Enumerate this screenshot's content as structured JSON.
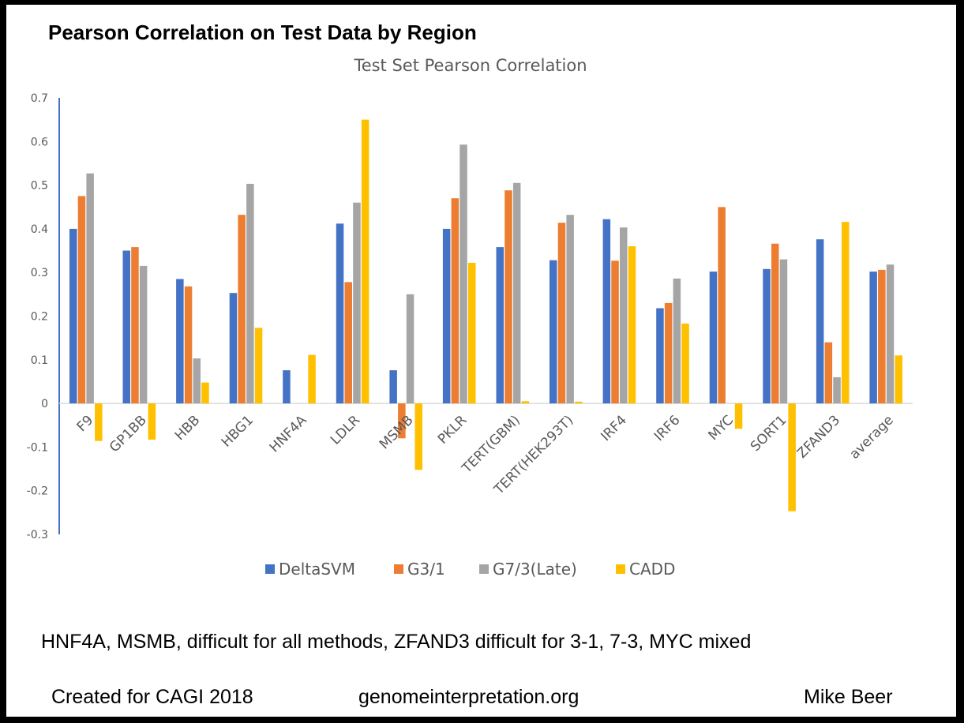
{
  "slide": {
    "heading": "Pearson Correlation on Test Data by Region",
    "note": "HNF4A, MSMB, difficult for all methods, ZFAND3 difficult for 3-1, 7-3, MYC mixed",
    "footer_left": "Created for CAGI 2018",
    "footer_center": "genomeinterpretation.org",
    "footer_right": "Mike Beer"
  },
  "chart_data": {
    "type": "bar",
    "title": "Test Set Pearson Correlation",
    "xlabel": "",
    "ylabel": "",
    "ylim": [
      -0.3,
      0.7
    ],
    "yticks": [
      "0.7",
      "0.6",
      "0.5",
      "0.4",
      "0.3",
      "0.2",
      "0.1",
      "0",
      "-0.1",
      "-0.2",
      "-0.3"
    ],
    "grid": false,
    "legend_position": "bottom",
    "categories": [
      "F9",
      "GP1BB",
      "HBB",
      "HBG1",
      "HNF4A",
      "LDLR",
      "MSMB",
      "PKLR",
      "TERT(GBM)",
      "TERT(HEK293T)",
      "IRF4",
      "IRF6",
      "MYC",
      "SORT1",
      "ZFAND3",
      "average"
    ],
    "series": [
      {
        "name": "DeltaSVM",
        "color": "#4472C4",
        "values": [
          0.4,
          0.35,
          0.285,
          0.253,
          0.076,
          0.412,
          0.076,
          0.4,
          0.358,
          0.328,
          0.422,
          0.218,
          0.302,
          0.308,
          0.376,
          0.302
        ]
      },
      {
        "name": "G3/1",
        "color": "#ED7D31",
        "values": [
          0.475,
          0.358,
          0.268,
          0.432,
          0.0,
          0.278,
          -0.08,
          0.47,
          0.488,
          0.414,
          0.327,
          0.23,
          0.45,
          0.366,
          0.14,
          0.306
        ]
      },
      {
        "name": "G7/3(Late)",
        "color": "#A5A5A5",
        "values": [
          0.527,
          0.315,
          0.103,
          0.503,
          0.0,
          0.46,
          0.25,
          0.593,
          0.505,
          0.432,
          0.403,
          0.286,
          0.0,
          0.33,
          0.06,
          0.318
        ]
      },
      {
        "name": "CADD",
        "color": "#FFC000",
        "values": [
          -0.086,
          -0.083,
          0.048,
          0.173,
          0.111,
          0.65,
          -0.152,
          0.322,
          0.005,
          0.004,
          0.36,
          0.183,
          -0.058,
          -0.247,
          0.416,
          0.11
        ]
      }
    ]
  }
}
